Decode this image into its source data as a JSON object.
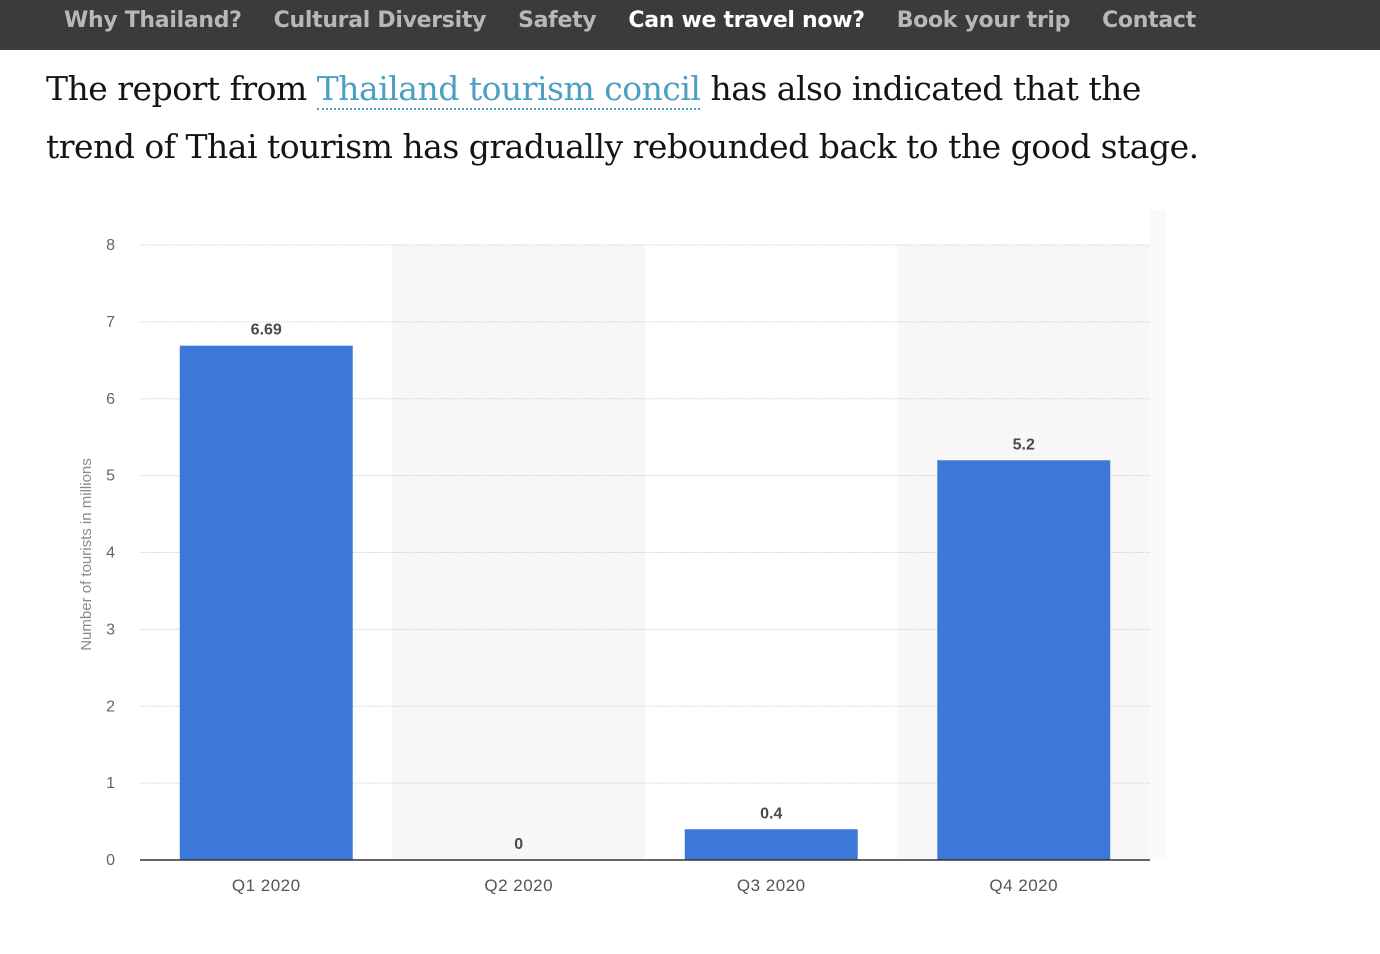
{
  "nav": {
    "items": [
      {
        "label": "Why Thailand?",
        "active": false
      },
      {
        "label": "Cultural Diversity",
        "active": false
      },
      {
        "label": "Safety",
        "active": false
      },
      {
        "label": "Can we travel now?",
        "active": true
      },
      {
        "label": "Book your trip",
        "active": false
      },
      {
        "label": "Contact",
        "active": false
      }
    ]
  },
  "content": {
    "text_before": "The report from ",
    "link_text": "Thailand tourism concil",
    "text_after": " has also indicated that the trend of Thai tourism has gradually rebounded back to the good stage."
  },
  "colors": {
    "nav_bg": "#3b3b3b",
    "link": "#4a9fc4",
    "bar": "#3d78d8"
  },
  "chart_data": {
    "type": "bar",
    "categories": [
      "Q1 2020",
      "Q2 2020",
      "Q3 2020",
      "Q4 2020"
    ],
    "values": [
      6.69,
      0,
      0.4,
      5.2
    ],
    "value_labels": [
      "6.69",
      "0",
      "0.4",
      "5.2"
    ],
    "title": "",
    "xlabel": "",
    "ylabel": "Number of tourists in millions",
    "ylim": [
      0,
      8
    ],
    "yticks": [
      0,
      1,
      2,
      3,
      4,
      5,
      6,
      7,
      8
    ],
    "grid": true,
    "legend": "none"
  }
}
